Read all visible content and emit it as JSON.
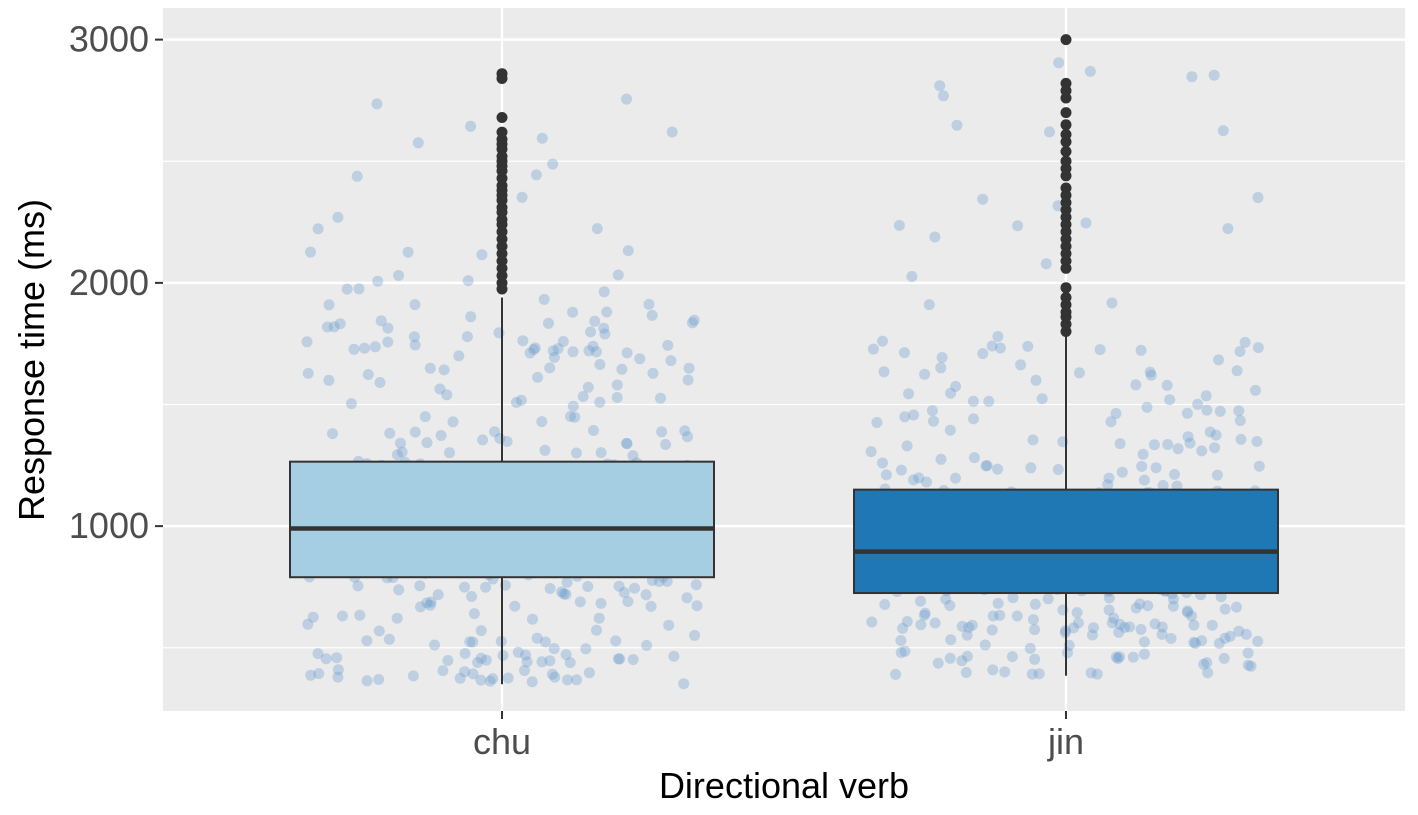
{
  "chart_data": {
    "type": "boxplot",
    "title": "",
    "xlabel": "Directional verb",
    "ylabel": "Response time (ms)",
    "ylim": [
      240,
      3130
    ],
    "y_ticks": [
      1000,
      2000,
      3000
    ],
    "y_minor_ticks": [
      500,
      1500,
      2500
    ],
    "grid": true,
    "legend": "none",
    "jitter_seed": 7,
    "categories": [
      "chu",
      "jin"
    ],
    "series": [
      {
        "category": "chu",
        "fill": "#a6cee3",
        "point_color": "#6a9ccf",
        "q1": 790,
        "median": 990,
        "q3": 1265,
        "whisker_low": 350,
        "whisker_high": 1940,
        "jitter_count": 440,
        "outliers": [
          1975,
          2000,
          2030,
          2060,
          2090,
          2120,
          2150,
          2180,
          2210,
          2240,
          2260,
          2290,
          2310,
          2340,
          2360,
          2380,
          2400,
          2430,
          2460,
          2480,
          2500,
          2520,
          2550,
          2570,
          2590,
          2620,
          2680,
          2840,
          2860
        ]
      },
      {
        "category": "jin",
        "fill": "#1f78b4",
        "point_color": "#6a9ccf",
        "q1": 725,
        "median": 895,
        "q3": 1150,
        "whisker_low": 385,
        "whisker_high": 1780,
        "jitter_count": 430,
        "outliers": [
          1800,
          1830,
          1860,
          1880,
          1910,
          1940,
          1980,
          2060,
          2090,
          2120,
          2150,
          2180,
          2210,
          2240,
          2270,
          2300,
          2330,
          2360,
          2390,
          2440,
          2470,
          2500,
          2540,
          2580,
          2610,
          2650,
          2700,
          2760,
          2790,
          2820,
          3000
        ]
      }
    ]
  }
}
